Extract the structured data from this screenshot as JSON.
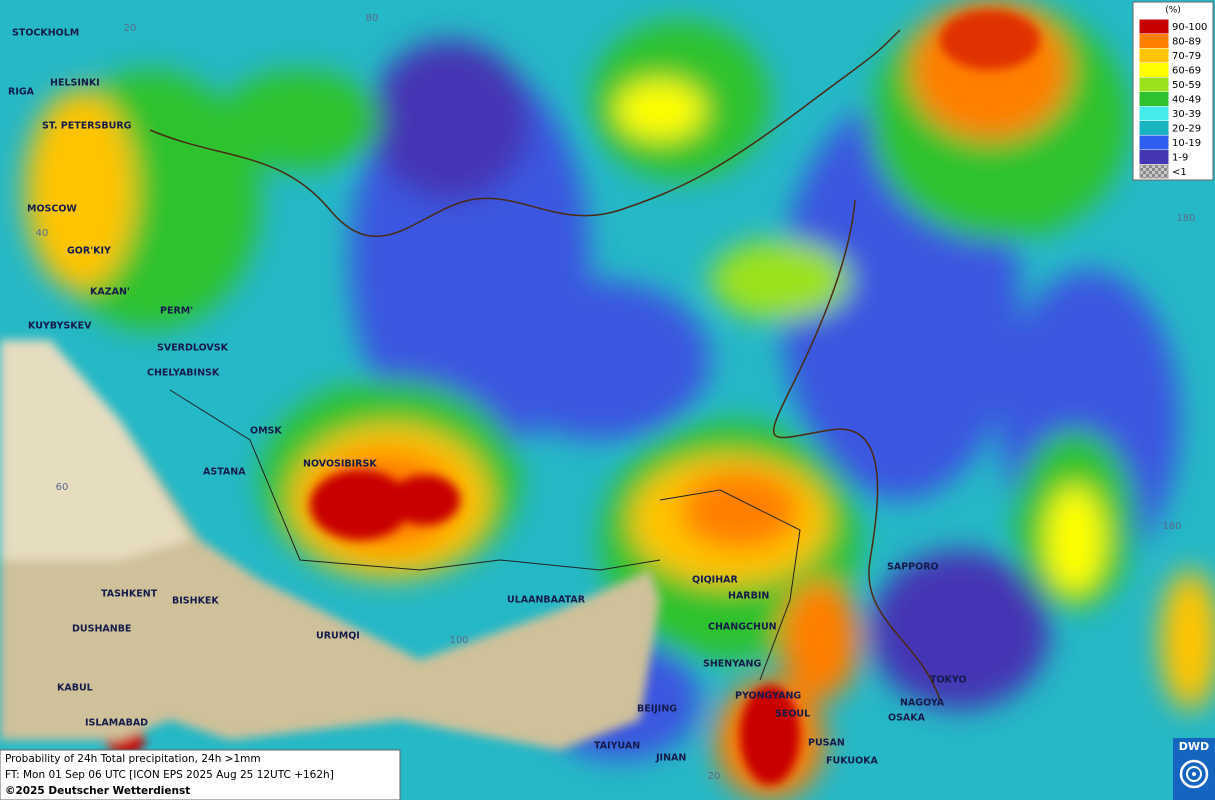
{
  "legend": {
    "title": "(%)",
    "items": [
      {
        "label": "90-100",
        "color": "#c80000"
      },
      {
        "label": "80-89",
        "color": "#ff7f00"
      },
      {
        "label": "70-79",
        "color": "#ffc400"
      },
      {
        "label": "60-69",
        "color": "#ffff00"
      },
      {
        "label": "50-59",
        "color": "#9be21c"
      },
      {
        "label": "40-49",
        "color": "#2fc22f"
      },
      {
        "label": "30-39",
        "color": "#46eaea"
      },
      {
        "label": "20-29",
        "color": "#1ab4c0"
      },
      {
        "label": "10-19",
        "color": "#2e5ef0"
      },
      {
        "label": "1-9",
        "color": "#4536b4"
      },
      {
        "label": "<1",
        "color": "#a0a0a0"
      }
    ]
  },
  "cities": [
    "STOCKHOLM",
    "HELSINKI",
    "RIGA",
    "ST. PETERSBURG",
    "MOSCOW",
    "GOR'KIY",
    "KAZAN'",
    "PERM'",
    "KUYBYSKEV",
    "SVERDLOVSK",
    "CHELYABINSK",
    "OMSK",
    "ASTANA",
    "NOVOSIBIRSK",
    "TASHKENT",
    "BISHKEK",
    "DUSHANBE",
    "URUMQI",
    "ULAANBAATAR",
    "QIQIHAR",
    "HARBIN",
    "CHANGCHUN",
    "SHENYANG",
    "PYONGYANG",
    "SEOUL",
    "BEIJING",
    "TAIYUAN",
    "JINAN",
    "PUSAN",
    "FUKUOKA",
    "SAPPORO",
    "TOKYO",
    "NAGOYA",
    "OSAKA",
    "KABUL",
    "ISLAMABAD"
  ],
  "grid_labels": [
    "20",
    "80",
    "40",
    "60",
    "100",
    "180",
    "160",
    "20"
  ],
  "footer": {
    "line1": "Probability of 24h Total precipitation, 24h >1mm",
    "line2": "FT: Mon 01 Sep 06 UTC [ICON EPS 2025 Aug 25 12UTC +162h]",
    "line3": "©2025 Deutscher Wetterdienst"
  },
  "logo": "DWD"
}
